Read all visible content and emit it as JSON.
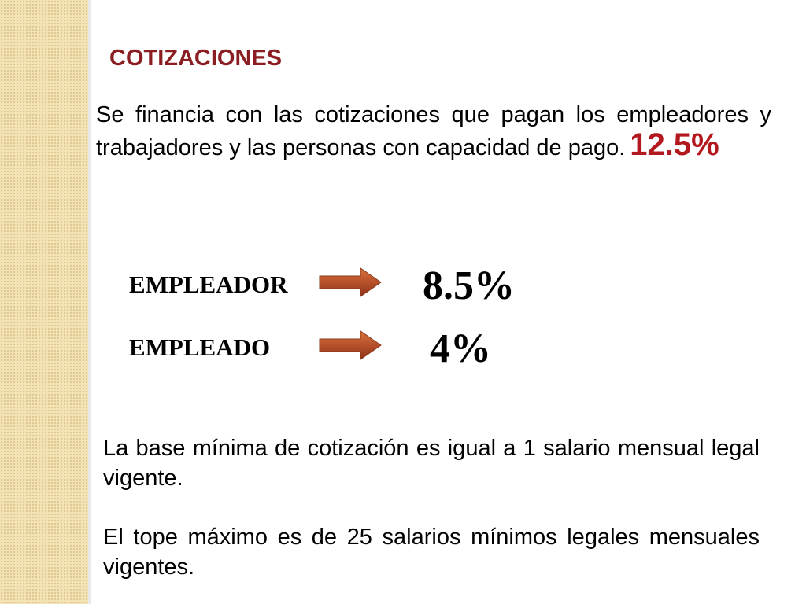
{
  "slide": {
    "title": "COTIZACIONES",
    "intro_text": "Se financia con las cotizaciones que pagan los empleadores y trabajadores  y las personas con capacidad de pago.",
    "total_rate": "12.5%",
    "contributions": [
      {
        "role": "EMPLEADOR",
        "rate": "8.5%"
      },
      {
        "role": "EMPLEADO",
        "rate": "4%"
      }
    ],
    "base_text": "La base mínima de cotización es igual a 1 salario mensual legal vigente.",
    "cap_text": "El tope máximo es de 25 salarios mínimos legales mensuales vigentes."
  },
  "colors": {
    "title": "#8b1e22",
    "highlight": "#b3181f",
    "arrow": "#b5502a",
    "side_band": "#f3e2b3"
  }
}
